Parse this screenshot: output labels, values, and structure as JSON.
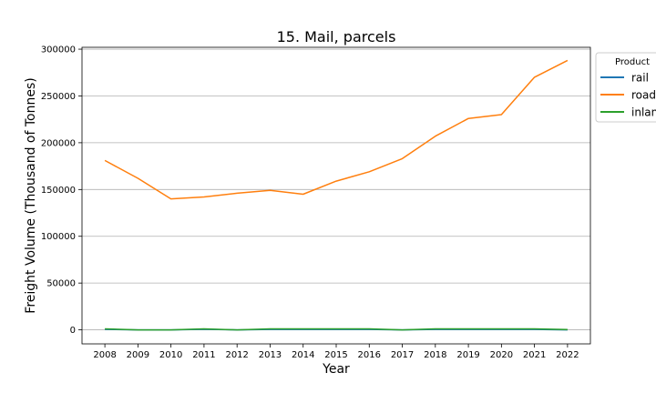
{
  "chart_data": {
    "type": "line",
    "title": "15. Mail, parcels",
    "xlabel": "Year",
    "ylabel": "Freight Volume (Thousand of Tonnes)",
    "x": [
      2008,
      2009,
      2010,
      2011,
      2012,
      2013,
      2014,
      2015,
      2016,
      2017,
      2018,
      2019,
      2020,
      2021,
      2022
    ],
    "ylim": [
      -15000,
      302000
    ],
    "yticks": [
      0,
      50000,
      100000,
      150000,
      200000,
      250000,
      300000
    ],
    "grid": "horizontal",
    "legend": {
      "title": "Product",
      "placement": "outside-top-right"
    },
    "series": [
      {
        "name": "rail",
        "color": "#1f77b4",
        "values": [
          500,
          0,
          0,
          600,
          0,
          500,
          500,
          500,
          500,
          0,
          500,
          500,
          500,
          500,
          0
        ]
      },
      {
        "name": "road",
        "color": "#ff7f0e",
        "values": [
          181000,
          162000,
          140000,
          142000,
          146000,
          149000,
          145000,
          159000,
          169000,
          183000,
          207000,
          226000,
          230000,
          270000,
          288000
        ]
      },
      {
        "name": "inland waterway",
        "color": "#2ca02c",
        "values": [
          1000,
          0,
          0,
          1000,
          0,
          1000,
          1000,
          1000,
          1000,
          0,
          1000,
          1000,
          1000,
          1000,
          300
        ]
      }
    ]
  }
}
